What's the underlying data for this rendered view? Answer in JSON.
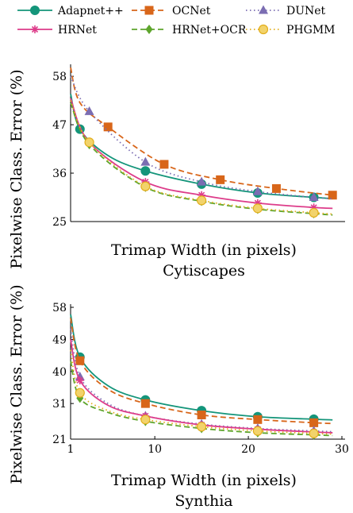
{
  "legend": [
    {
      "name": "Adapnet++",
      "color": "#14957a",
      "dash": "",
      "marker": "circle"
    },
    {
      "name": "OCNet",
      "color": "#d8661a",
      "dash": "7,4",
      "marker": "square"
    },
    {
      "name": "DUNet",
      "color": "#7b6db2",
      "dash": "1.5,3.5",
      "marker": "triangle"
    },
    {
      "name": "HRNet",
      "color": "#dd3c8a",
      "dash": "",
      "marker": "star"
    },
    {
      "name": "HRNet+OCR",
      "color": "#5ea52c",
      "dash": "7,4",
      "marker": "diamond"
    },
    {
      "name": "PHGMM",
      "color": "#e2ae1c",
      "dash": "1.5,3.5",
      "marker": "circle"
    }
  ],
  "chart_data": [
    {
      "type": "line",
      "subtitle": "Cytiscapes",
      "xlabel": "Trimap Width (in pixels)",
      "ylabel": "Pixelwise Class. Error (%)",
      "xlim": [
        1,
        30
      ],
      "ylim": [
        25,
        60
      ],
      "yticks": [
        25,
        36,
        47,
        58
      ],
      "xticks": [],
      "series": [
        {
          "name": "Adapnet++",
          "x": [
            1,
            2,
            5,
            9,
            15,
            21,
            27,
            29
          ],
          "y": [
            54,
            46,
            40,
            36.5,
            33.5,
            31.5,
            30.5,
            30.2
          ],
          "markers_x": [
            2,
            9,
            15,
            21,
            27
          ],
          "markers_y": [
            46,
            36.5,
            33.5,
            31.5,
            30.5
          ]
        },
        {
          "name": "OCNet",
          "x": [
            1,
            2,
            5,
            11,
            17,
            23,
            29
          ],
          "y": [
            60,
            52,
            46.5,
            38,
            34.5,
            32.5,
            31
          ],
          "markers_x": [
            5,
            11,
            17,
            23,
            29
          ],
          "markers_y": [
            46.5,
            38,
            34.5,
            32.5,
            31
          ]
        },
        {
          "name": "DUNet",
          "x": [
            1,
            3,
            9,
            15,
            21,
            27,
            29
          ],
          "y": [
            58,
            50,
            38.5,
            34,
            31.8,
            30.5,
            30.2
          ],
          "markers_x": [
            3,
            9,
            15,
            21,
            27
          ],
          "markers_y": [
            50,
            38.5,
            34,
            31.8,
            30.5
          ]
        },
        {
          "name": "HRNet",
          "x": [
            1,
            3,
            9,
            15,
            21,
            27,
            29
          ],
          "y": [
            53,
            43,
            34,
            31,
            29.2,
            28.2,
            28
          ],
          "markers_x": [
            3,
            9,
            15,
            21,
            27
          ],
          "markers_y": [
            43,
            34,
            31,
            29.2,
            28.2
          ]
        },
        {
          "name": "HRNet+OCR",
          "x": [
            1,
            3,
            9,
            15,
            21,
            27,
            29
          ],
          "y": [
            52,
            42.5,
            32.8,
            29.6,
            27.8,
            26.8,
            26.5
          ],
          "markers_x": [
            3,
            9,
            15,
            21,
            27
          ],
          "markers_y": [
            42.5,
            32.8,
            29.6,
            27.8,
            26.8
          ]
        },
        {
          "name": "PHGMM",
          "x": [
            1,
            3,
            9,
            15,
            21,
            27,
            29
          ],
          "y": [
            52.5,
            43,
            33,
            29.8,
            28,
            27,
            26.7
          ],
          "markers_x": [
            3,
            9,
            15,
            21,
            27
          ],
          "markers_y": [
            43,
            33,
            29.8,
            28,
            27
          ]
        }
      ]
    },
    {
      "type": "line",
      "subtitle": "Synthia",
      "xlabel": "Trimap Width (in pixels)",
      "ylabel": "Pixelwise Class. Error (%)",
      "xlim": [
        1,
        30
      ],
      "ylim": [
        21,
        58
      ],
      "yticks": [
        21,
        31,
        40,
        49,
        58
      ],
      "xticks": [
        1,
        10,
        20,
        30
      ],
      "series": [
        {
          "name": "Adapnet++",
          "x": [
            1,
            2,
            5,
            9,
            15,
            21,
            27,
            29
          ],
          "y": [
            56,
            44,
            36,
            32,
            29,
            27.3,
            26.6,
            26.4
          ],
          "markers_x": [
            2,
            9,
            15,
            21,
            27
          ],
          "markers_y": [
            44,
            32,
            29,
            27.3,
            26.6
          ]
        },
        {
          "name": "OCNet",
          "x": [
            1,
            2,
            5,
            9,
            15,
            21,
            27,
            29
          ],
          "y": [
            55,
            43,
            35,
            31,
            27.8,
            26.5,
            25.6,
            25.4
          ],
          "markers_x": [
            2,
            9,
            15,
            21,
            27
          ],
          "markers_y": [
            43,
            31,
            27.8,
            26.5,
            25.6
          ]
        },
        {
          "name": "DUNet",
          "x": [
            1,
            2,
            5,
            9,
            15,
            21,
            27,
            29
          ],
          "y": [
            52,
            38.5,
            31,
            27.5,
            25.2,
            24,
            23.3,
            23.1
          ],
          "markers_x": [
            2,
            9,
            15,
            21,
            27
          ],
          "markers_y": [
            38.5,
            27.5,
            25.2,
            24,
            23.3
          ]
        },
        {
          "name": "HRNet",
          "x": [
            1,
            2,
            5,
            9,
            15,
            21,
            27,
            29
          ],
          "y": [
            49,
            37.5,
            30.5,
            27.5,
            25,
            23.8,
            23,
            22.8
          ],
          "markers_x": [
            2,
            9,
            15,
            21,
            27
          ],
          "markers_y": [
            37.5,
            27.5,
            25,
            23.8,
            23
          ]
        },
        {
          "name": "HRNet+OCR",
          "x": [
            1,
            2,
            5,
            9,
            15,
            21,
            27,
            29
          ],
          "y": [
            43,
            32.5,
            28.5,
            26,
            24,
            22.8,
            22.2,
            22
          ],
          "markers_x": [
            2,
            9,
            15,
            21,
            27
          ],
          "markers_y": [
            32.5,
            26,
            24,
            22.8,
            22.2
          ]
        },
        {
          "name": "PHGMM",
          "x": [
            1,
            2,
            5,
            9,
            15,
            21,
            27,
            29
          ],
          "y": [
            46,
            34,
            29,
            26.5,
            24.5,
            23.3,
            22.6,
            22.4
          ],
          "markers_x": [
            2,
            9,
            15,
            21,
            27
          ],
          "markers_y": [
            34,
            26.5,
            24.5,
            23.3,
            22.6
          ]
        }
      ]
    }
  ]
}
